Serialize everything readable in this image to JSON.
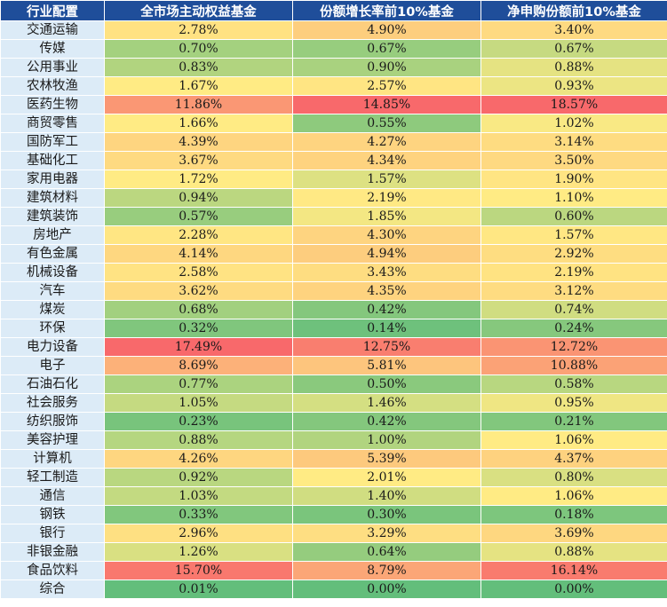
{
  "table": {
    "headers": [
      "行业配置",
      "全市场主动权益基金",
      "份额增长率前10%基金",
      "净申购份额前10%基金"
    ],
    "rows": [
      {
        "industry": "交通运输",
        "values": [
          "2.78%",
          "4.90%",
          "3.40%"
        ]
      },
      {
        "industry": "传媒",
        "values": [
          "0.70%",
          "0.67%",
          "0.67%"
        ]
      },
      {
        "industry": "公用事业",
        "values": [
          "0.83%",
          "0.90%",
          "0.88%"
        ]
      },
      {
        "industry": "农林牧渔",
        "values": [
          "1.67%",
          "2.57%",
          "0.93%"
        ]
      },
      {
        "industry": "医药生物",
        "values": [
          "11.86%",
          "14.85%",
          "18.57%"
        ]
      },
      {
        "industry": "商贸零售",
        "values": [
          "1.66%",
          "0.55%",
          "1.02%"
        ]
      },
      {
        "industry": "国防军工",
        "values": [
          "4.39%",
          "4.27%",
          "3.14%"
        ]
      },
      {
        "industry": "基础化工",
        "values": [
          "3.67%",
          "4.34%",
          "3.50%"
        ]
      },
      {
        "industry": "家用电器",
        "values": [
          "1.72%",
          "1.57%",
          "1.90%"
        ]
      },
      {
        "industry": "建筑材料",
        "values": [
          "0.94%",
          "2.19%",
          "1.10%"
        ]
      },
      {
        "industry": "建筑装饰",
        "values": [
          "0.57%",
          "1.85%",
          "0.60%"
        ]
      },
      {
        "industry": "房地产",
        "values": [
          "2.28%",
          "4.30%",
          "1.57%"
        ]
      },
      {
        "industry": "有色金属",
        "values": [
          "4.14%",
          "4.94%",
          "2.92%"
        ]
      },
      {
        "industry": "机械设备",
        "values": [
          "2.58%",
          "3.43%",
          "2.19%"
        ]
      },
      {
        "industry": "汽车",
        "values": [
          "3.62%",
          "4.35%",
          "3.12%"
        ]
      },
      {
        "industry": "煤炭",
        "values": [
          "0.68%",
          "0.42%",
          "0.74%"
        ]
      },
      {
        "industry": "环保",
        "values": [
          "0.32%",
          "0.14%",
          "0.24%"
        ]
      },
      {
        "industry": "电力设备",
        "values": [
          "17.49%",
          "12.75%",
          "12.72%"
        ]
      },
      {
        "industry": "电子",
        "values": [
          "8.69%",
          "5.81%",
          "10.88%"
        ]
      },
      {
        "industry": "石油石化",
        "values": [
          "0.77%",
          "0.50%",
          "0.58%"
        ]
      },
      {
        "industry": "社会服务",
        "values": [
          "1.05%",
          "1.46%",
          "0.95%"
        ]
      },
      {
        "industry": "纺织服饰",
        "values": [
          "0.23%",
          "0.42%",
          "0.21%"
        ]
      },
      {
        "industry": "美容护理",
        "values": [
          "0.88%",
          "1.00%",
          "1.06%"
        ]
      },
      {
        "industry": "计算机",
        "values": [
          "4.26%",
          "5.39%",
          "4.37%"
        ]
      },
      {
        "industry": "轻工制造",
        "values": [
          "0.92%",
          "2.01%",
          "0.80%"
        ]
      },
      {
        "industry": "通信",
        "values": [
          "1.03%",
          "1.40%",
          "1.06%"
        ]
      },
      {
        "industry": "钢铁",
        "values": [
          "0.33%",
          "0.30%",
          "0.18%"
        ]
      },
      {
        "industry": "银行",
        "values": [
          "2.96%",
          "3.29%",
          "3.69%"
        ]
      },
      {
        "industry": "非银金融",
        "values": [
          "1.26%",
          "0.64%",
          "0.88%"
        ]
      },
      {
        "industry": "食品饮料",
        "values": [
          "15.70%",
          "8.79%",
          "16.14%"
        ]
      },
      {
        "industry": "综合",
        "values": [
          "0.01%",
          "0.00%",
          "0.00%"
        ]
      }
    ]
  },
  "colors": {
    "header_bg": "#1f4e9a",
    "header_text": "#ffffff",
    "industry_bg": "#dcebf7",
    "scale_low": "#63be7b",
    "scale_mid": "#ffeb84",
    "scale_high": "#f8696b"
  }
}
